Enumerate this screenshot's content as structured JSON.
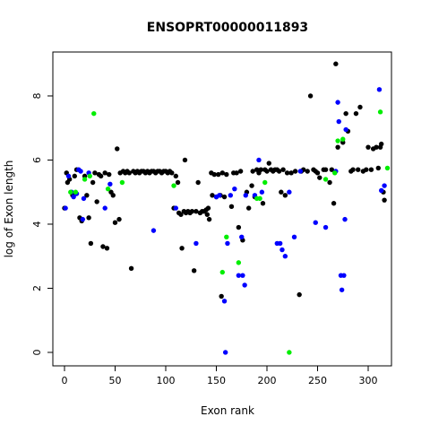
{
  "chart_data": {
    "type": "scatter",
    "title": "ENSOPRT00000011893",
    "x_label": "Exon rank",
    "y_label": "log of Exon length",
    "xlim": [
      -11.5,
      323
    ],
    "ylim": [
      -0.42,
      9.37
    ],
    "xticks": [
      0,
      50,
      100,
      150,
      200,
      250,
      300
    ],
    "yticks": [
      0,
      2,
      4,
      6,
      8
    ],
    "series": [
      {
        "color": "#000000",
        "x": [
          0,
          2,
          3,
          5,
          8,
          10,
          12,
          15,
          17,
          20,
          22,
          24,
          26,
          28,
          30,
          32,
          34,
          36,
          38,
          40,
          42,
          44,
          46,
          48,
          50,
          52,
          54,
          55,
          58,
          60,
          62,
          64,
          66,
          68,
          70,
          72,
          74,
          76,
          78,
          80,
          82,
          84,
          86,
          88,
          90,
          92,
          94,
          96,
          98,
          100,
          102,
          104,
          106,
          108,
          110,
          112,
          113,
          115,
          116,
          118,
          119,
          120,
          122,
          124,
          126,
          128,
          130,
          132,
          134,
          136,
          138,
          140,
          141,
          142,
          143,
          145,
          146,
          148,
          150,
          152,
          154,
          155,
          156,
          158,
          160,
          165,
          167,
          170,
          172,
          174,
          176,
          180,
          182,
          185,
          186,
          188,
          190,
          192,
          194,
          196,
          198,
          200,
          202,
          204,
          206,
          208,
          210,
          212,
          214,
          216,
          218,
          220,
          224,
          228,
          232,
          234,
          236,
          240,
          243,
          246,
          248,
          250,
          252,
          256,
          258,
          262,
          264,
          266,
          268,
          270,
          275,
          278,
          280,
          283,
          285,
          288,
          290,
          292,
          295,
          298,
          300,
          303,
          305,
          308,
          310,
          312,
          313,
          315,
          316
        ],
        "values": [
          4.5,
          5.6,
          5.3,
          5.4,
          4.9,
          5.5,
          5.7,
          4.2,
          4.1,
          5.5,
          4.9,
          4.2,
          3.4,
          5.3,
          5.6,
          4.7,
          5.55,
          5.5,
          3.3,
          5.6,
          3.25,
          5.55,
          5.0,
          4.9,
          4.05,
          6.35,
          4.15,
          5.6,
          5.65,
          5.6,
          5.65,
          5.6,
          2.62,
          5.65,
          5.6,
          5.65,
          5.6,
          5.65,
          5.65,
          5.6,
          5.65,
          5.6,
          5.65,
          5.65,
          5.6,
          5.65,
          5.65,
          5.6,
          5.65,
          5.65,
          5.6,
          5.65,
          5.6,
          4.5,
          5.5,
          5.3,
          4.35,
          4.3,
          3.25,
          4.4,
          6.0,
          4.35,
          4.4,
          4.35,
          4.4,
          2.55,
          4.4,
          5.3,
          4.35,
          4.4,
          4.4,
          4.45,
          4.3,
          4.5,
          4.15,
          5.6,
          4.9,
          5.55,
          4.85,
          5.55,
          4.9,
          1.75,
          5.6,
          4.85,
          5.55,
          4.55,
          5.6,
          5.6,
          3.9,
          5.65,
          3.5,
          5.0,
          4.5,
          5.2,
          5.65,
          4.85,
          5.7,
          5.6,
          5.7,
          4.65,
          5.7,
          5.65,
          5.9,
          5.7,
          5.65,
          5.7,
          5.7,
          5.65,
          5.0,
          5.7,
          4.9,
          5.6,
          5.6,
          5.65,
          1.8,
          5.65,
          5.7,
          5.65,
          8.0,
          5.7,
          5.65,
          5.6,
          5.45,
          5.7,
          5.7,
          5.3,
          5.7,
          4.65,
          9.0,
          6.4,
          6.55,
          7.45,
          6.9,
          5.65,
          5.7,
          7.45,
          5.7,
          7.65,
          5.65,
          5.7,
          6.4,
          5.7,
          6.35,
          6.4,
          5.75,
          6.4,
          6.5,
          5.0,
          4.75
        ]
      },
      {
        "color": "#0000ff",
        "x": [
          1,
          4,
          7,
          9,
          12,
          14,
          16,
          18,
          19,
          24,
          40,
          45,
          88,
          110,
          130,
          150,
          153,
          158,
          159,
          161,
          164,
          168,
          172,
          175,
          176,
          178,
          179,
          188,
          192,
          195,
          210,
          213,
          215,
          218,
          222,
          227,
          233,
          248,
          258,
          268,
          270,
          271,
          273,
          274,
          276,
          277,
          278,
          311,
          313,
          316
        ],
        "values": [
          4.5,
          5.5,
          5.0,
          4.85,
          4.95,
          5.7,
          5.65,
          4.15,
          4.8,
          5.6,
          4.5,
          5.25,
          3.8,
          4.5,
          3.4,
          4.85,
          4.9,
          1.6,
          0.0,
          3.4,
          4.9,
          5.1,
          2.4,
          3.6,
          2.4,
          2.1,
          4.9,
          4.9,
          6.0,
          5.0,
          3.4,
          3.4,
          3.2,
          3.0,
          5.0,
          3.6,
          5.65,
          4.05,
          3.9,
          5.65,
          7.8,
          7.2,
          2.4,
          1.95,
          2.4,
          4.15,
          6.95,
          8.2,
          5.05,
          5.2
        ]
      },
      {
        "color": "#00ee00",
        "x": [
          6,
          11,
          20,
          25,
          29,
          43,
          57,
          108,
          156,
          160,
          172,
          190,
          193,
          198,
          222,
          258,
          267,
          270,
          275,
          312,
          319
        ],
        "values": [
          5.0,
          5.0,
          5.4,
          5.5,
          7.45,
          5.1,
          5.3,
          5.2,
          2.5,
          3.6,
          2.8,
          4.8,
          4.8,
          5.3,
          0.0,
          5.4,
          5.6,
          6.6,
          6.65,
          7.5,
          5.75
        ]
      }
    ]
  }
}
